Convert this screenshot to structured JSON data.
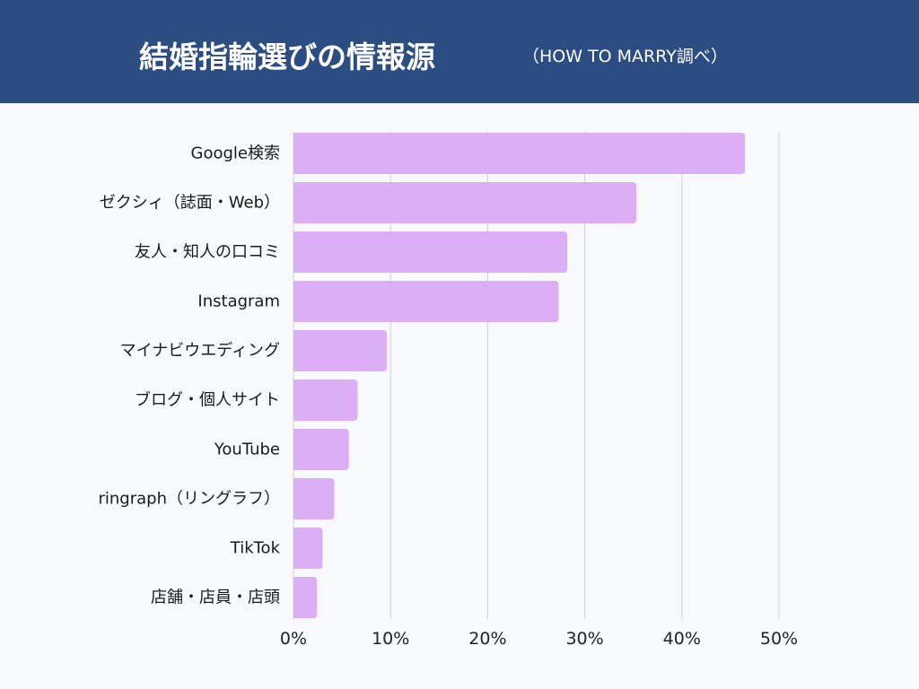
{
  "header": {
    "title": "結婚指輪選びの情報源",
    "subtitle": "（HOW TO MARRY調べ）"
  },
  "colors": {
    "header_bg": "#2c4d82",
    "bar": "#dbaef5",
    "grid": "#cfcfd6"
  },
  "chart_data": {
    "type": "bar",
    "orientation": "horizontal",
    "categories": [
      "Google検索",
      "ゼクシィ（誌面・Web）",
      "友人・知人の口コミ",
      "Instagram",
      "マイナビウエディング",
      "ブログ・個人サイト",
      "YouTube",
      "ringraph（リングラフ）",
      "TikTok",
      "店舗・店員・店頭"
    ],
    "values": [
      46.5,
      35.3,
      28.2,
      27.3,
      9.6,
      6.6,
      5.7,
      4.2,
      3.0,
      2.4
    ],
    "xlim": [
      0,
      50
    ],
    "ticks": [
      "0%",
      "10%",
      "20%",
      "30%",
      "40%",
      "50%"
    ],
    "grid": "vertical",
    "legend": "none"
  }
}
